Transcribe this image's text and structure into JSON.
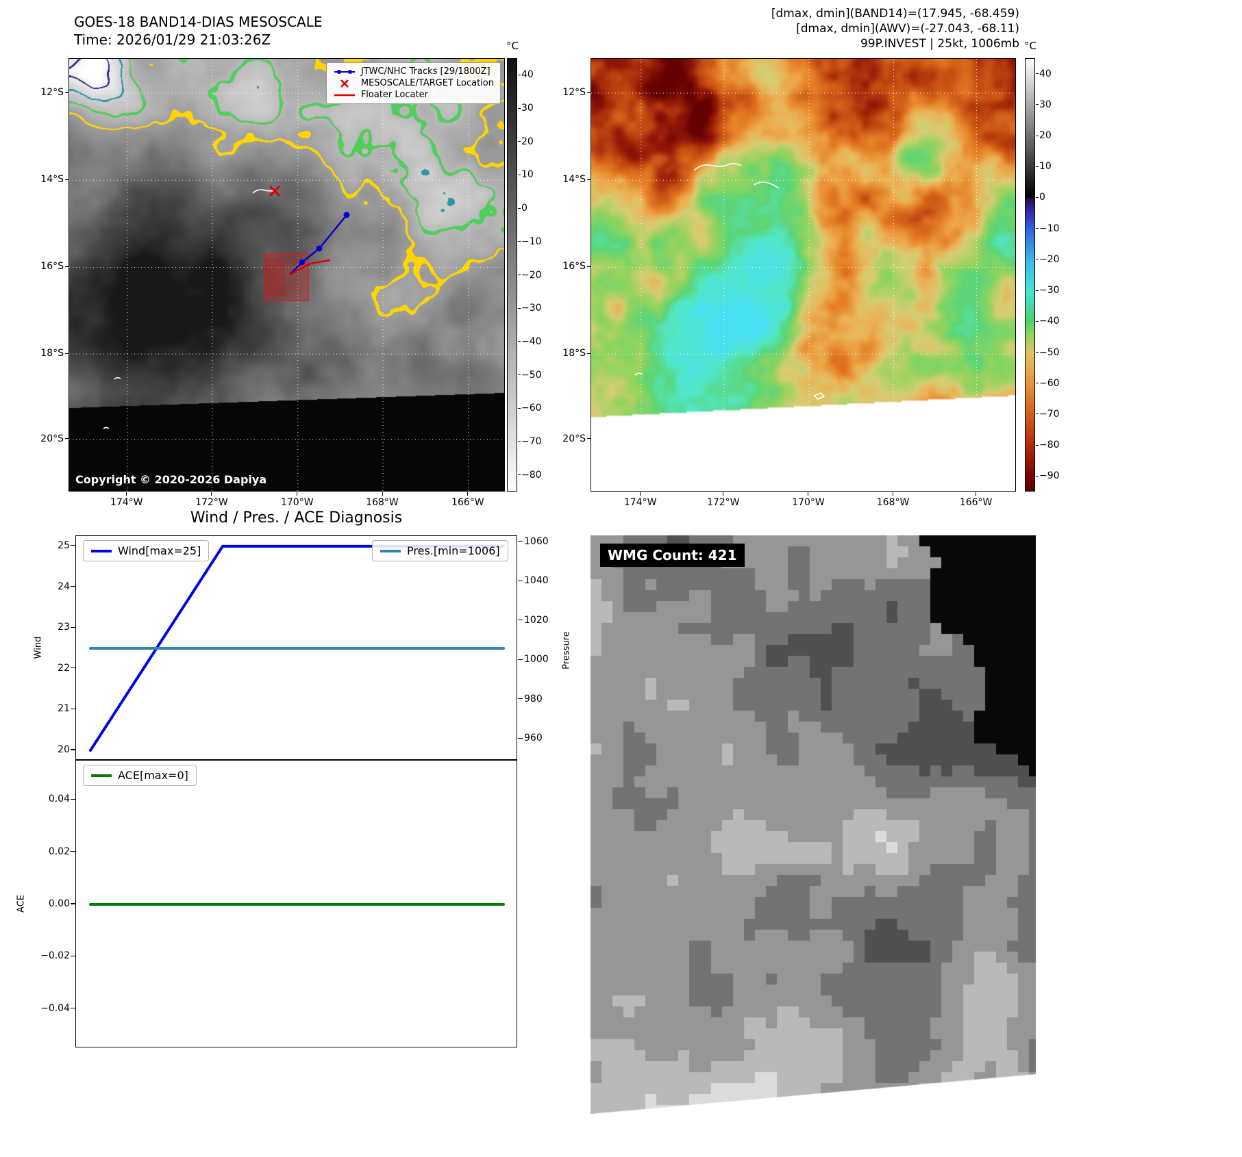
{
  "panels": {
    "band14": {
      "title": "GOES-18 BAND14-DIAS MESOSCALE",
      "time": "Time: 2026/01/29 21:03:26Z",
      "copyright": "Copyright © 2020-2026 Dapiya",
      "legend": [
        {
          "label": "JTWC/NHC Tracks [29/1800Z]",
          "marker": "blue-line-with-dots",
          "color": "#0000cc"
        },
        {
          "label": "MESOSCALE/TARGET Location",
          "marker": "red-x",
          "color": "#dd0000"
        },
        {
          "label": "Floater Locater",
          "marker": "red-line",
          "color": "#dd0000"
        }
      ],
      "lat_ticks": [
        "12°S",
        "14°S",
        "16°S",
        "18°S",
        "20°S"
      ],
      "lon_ticks": [
        "174°W",
        "172°W",
        "170°W",
        "168°W",
        "166°W"
      ],
      "colorbar": {
        "unit": "°C",
        "tick_labels": [
          "40",
          "30",
          "20",
          "10",
          "0",
          "−10",
          "−20",
          "−30",
          "−40",
          "−50",
          "−60",
          "−70",
          "−80"
        ],
        "tick_values": [
          40,
          30,
          20,
          10,
          0,
          -10,
          -20,
          -30,
          -40,
          -50,
          -60,
          -70,
          -80
        ]
      }
    },
    "awv": {
      "header_lines": [
        "[dmax, dmin](BAND14)=(17.945, -68.459)",
        "[dmax, dmin](AWV)=(-27.043, -68.11)",
        "99P.INVEST | 25kt, 1006mb"
      ],
      "lat_ticks": [
        "12°S",
        "14°S",
        "16°S",
        "18°S",
        "20°S"
      ],
      "lon_ticks": [
        "174°W",
        "172°W",
        "170°W",
        "168°W",
        "166°W"
      ],
      "colorbar": {
        "unit": "°C",
        "tick_labels": [
          "40",
          "30",
          "20",
          "10",
          "0",
          "−10",
          "−20",
          "−30",
          "−40",
          "−50",
          "−60",
          "−70",
          "−80",
          "−90"
        ],
        "tick_values": [
          40,
          30,
          20,
          10,
          0,
          -10,
          -20,
          -30,
          -40,
          -50,
          -60,
          -70,
          -80,
          -90
        ]
      }
    },
    "wmg": {
      "label": "WMG Count: 421"
    }
  },
  "chart_data": [
    {
      "type": "line",
      "name": "wind-pressure",
      "title": "Wind / Pres. / ACE Diagnosis",
      "series": [
        {
          "name": "Wind[max=25]",
          "color": "#0000ee",
          "axis": "left",
          "x": [
            0,
            0.32,
            1
          ],
          "values": [
            20,
            25,
            25
          ]
        },
        {
          "name": "Pres.[min=1006]",
          "color": "#2e86b0",
          "axis": "right",
          "x": [
            0,
            1
          ],
          "values": [
            1006,
            1006
          ]
        }
      ],
      "left_axis": {
        "label": "Wind",
        "tick_labels": [
          "25",
          "24",
          "23",
          "22",
          "21",
          "20"
        ],
        "tick_values": [
          25,
          24,
          23,
          22,
          21,
          20
        ],
        "range": [
          19.75,
          25.25
        ]
      },
      "right_axis": {
        "label": "Pressure",
        "tick_labels": [
          "1060",
          "1040",
          "1020",
          "1000",
          "980",
          "960"
        ],
        "tick_values": [
          1060,
          1040,
          1020,
          1000,
          980,
          960
        ],
        "range": [
          949,
          1063
        ]
      },
      "x_axis": {
        "range": [
          0,
          1
        ],
        "tick_labels": []
      },
      "legend_positions": [
        "upper left",
        "upper right"
      ],
      "grid": false
    },
    {
      "type": "line",
      "name": "ace",
      "series": [
        {
          "name": "ACE[max=0]",
          "color": "#008000",
          "axis": "left",
          "x": [
            0,
            1
          ],
          "values": [
            0,
            0
          ]
        }
      ],
      "left_axis": {
        "label": "ACE",
        "tick_labels": [
          "0.04",
          "0.02",
          "0.00",
          "−0.02",
          "−0.04"
        ],
        "tick_values": [
          0.04,
          0.02,
          0,
          -0.02,
          -0.04
        ],
        "range": [
          -0.055,
          0.055
        ]
      },
      "x_axis": {
        "range": [
          0,
          1
        ],
        "tick_labels": []
      },
      "legend_positions": [
        "upper left"
      ],
      "grid": false
    }
  ]
}
